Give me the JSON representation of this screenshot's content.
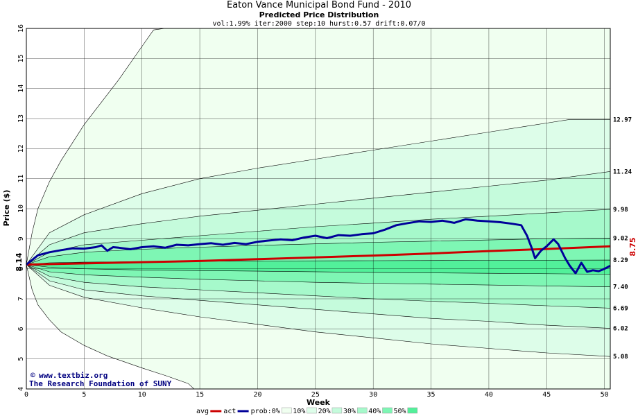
{
  "chart_data": {
    "type": "area",
    "title": "Eaton Vance Municipal Bond Fund - 2010",
    "subtitle": "Predicted Price Distribution",
    "params": "vol:1.99% iter:2000 step:10 hurst:0.57 drift:0.07/0",
    "xlabel": "Week",
    "ylabel": "Price ($)",
    "xlim": [
      0,
      50.5
    ],
    "ylim": [
      4,
      16
    ],
    "x_ticks": [
      "0",
      "5",
      "10",
      "15",
      "20",
      "25",
      "30",
      "35",
      "40",
      "45",
      "50"
    ],
    "y_ticks": [
      "4",
      "5",
      "6",
      "7",
      "8",
      "9",
      "10",
      "11",
      "12",
      "13",
      "14",
      "15",
      "16"
    ],
    "grid": true,
    "start_price": "8.14",
    "end_price": "8.75",
    "band_labels": [
      "12.97",
      "11.24",
      "9.98",
      "9.02",
      "8.29",
      "7.40",
      "6.69",
      "6.02",
      "5.08"
    ],
    "bands": [
      {
        "name": "0%",
        "color": "#f0fff0",
        "upper": [
          [
            0,
            8.14
          ],
          [
            0.5,
            9.2
          ],
          [
            1,
            10.0
          ],
          [
            2,
            10.9
          ],
          [
            3,
            11.6
          ],
          [
            5,
            12.8
          ],
          [
            8,
            14.3
          ],
          [
            10,
            15.4
          ],
          [
            11,
            15.95
          ],
          [
            12,
            16.0
          ],
          [
            50.5,
            16.0
          ]
        ],
        "lower": [
          [
            0,
            8.14
          ],
          [
            0.5,
            7.3
          ],
          [
            1,
            6.8
          ],
          [
            2,
            6.3
          ],
          [
            3,
            5.9
          ],
          [
            5,
            5.45
          ],
          [
            7,
            5.1
          ],
          [
            10,
            4.7
          ],
          [
            12,
            4.45
          ],
          [
            14,
            4.18
          ],
          [
            14.5,
            4.0
          ],
          [
            50.5,
            4.0
          ]
        ]
      },
      {
        "name": "10%",
        "color": "#ddfde9",
        "upper": [
          [
            0,
            8.14
          ],
          [
            2,
            9.2
          ],
          [
            5,
            9.8
          ],
          [
            10,
            10.5
          ],
          [
            15,
            11.0
          ],
          [
            20,
            11.35
          ],
          [
            25,
            11.65
          ],
          [
            30,
            11.95
          ],
          [
            35,
            12.25
          ],
          [
            40,
            12.55
          ],
          [
            45,
            12.85
          ],
          [
            47,
            12.97
          ],
          [
            50.5,
            12.97
          ]
        ],
        "lower": [
          [
            0,
            8.14
          ],
          [
            2,
            7.45
          ],
          [
            5,
            7.05
          ],
          [
            10,
            6.7
          ],
          [
            15,
            6.4
          ],
          [
            20,
            6.15
          ],
          [
            25,
            5.9
          ],
          [
            30,
            5.7
          ],
          [
            35,
            5.5
          ],
          [
            40,
            5.35
          ],
          [
            45,
            5.2
          ],
          [
            50.5,
            5.08
          ]
        ]
      },
      {
        "name": "20%",
        "color": "#c5fbdc",
        "upper": [
          [
            0,
            8.14
          ],
          [
            2,
            8.8
          ],
          [
            5,
            9.2
          ],
          [
            10,
            9.5
          ],
          [
            15,
            9.75
          ],
          [
            20,
            9.95
          ],
          [
            25,
            10.15
          ],
          [
            30,
            10.35
          ],
          [
            35,
            10.55
          ],
          [
            40,
            10.75
          ],
          [
            45,
            10.95
          ],
          [
            50.5,
            11.24
          ]
        ],
        "lower": [
          [
            0,
            8.14
          ],
          [
            2,
            7.6
          ],
          [
            5,
            7.3
          ],
          [
            10,
            7.1
          ],
          [
            15,
            6.95
          ],
          [
            20,
            6.8
          ],
          [
            25,
            6.65
          ],
          [
            30,
            6.5
          ],
          [
            35,
            6.35
          ],
          [
            40,
            6.25
          ],
          [
            45,
            6.12
          ],
          [
            50.5,
            6.02
          ]
        ]
      },
      {
        "name": "30%",
        "color": "#a6f9cb",
        "upper": [
          [
            0,
            8.14
          ],
          [
            2,
            8.55
          ],
          [
            5,
            8.8
          ],
          [
            10,
            8.95
          ],
          [
            15,
            9.1
          ],
          [
            20,
            9.25
          ],
          [
            25,
            9.4
          ],
          [
            30,
            9.52
          ],
          [
            35,
            9.65
          ],
          [
            40,
            9.75
          ],
          [
            45,
            9.86
          ],
          [
            50.5,
            9.98
          ]
        ],
        "lower": [
          [
            0,
            8.14
          ],
          [
            2,
            7.75
          ],
          [
            5,
            7.55
          ],
          [
            10,
            7.4
          ],
          [
            15,
            7.3
          ],
          [
            20,
            7.2
          ],
          [
            25,
            7.1
          ],
          [
            30,
            7.0
          ],
          [
            35,
            6.92
          ],
          [
            40,
            6.85
          ],
          [
            45,
            6.77
          ],
          [
            50.5,
            6.69
          ]
        ]
      },
      {
        "name": "40%",
        "color": "#7ef6b4",
        "upper": [
          [
            0,
            8.14
          ],
          [
            2,
            8.4
          ],
          [
            5,
            8.55
          ],
          [
            10,
            8.65
          ],
          [
            15,
            8.72
          ],
          [
            20,
            8.78
          ],
          [
            25,
            8.83
          ],
          [
            30,
            8.88
          ],
          [
            35,
            8.92
          ],
          [
            40,
            8.96
          ],
          [
            45,
            9.0
          ],
          [
            50.5,
            9.02
          ]
        ],
        "lower": [
          [
            0,
            8.14
          ],
          [
            2,
            7.9
          ],
          [
            5,
            7.8
          ],
          [
            10,
            7.72
          ],
          [
            15,
            7.65
          ],
          [
            20,
            7.6
          ],
          [
            25,
            7.55
          ],
          [
            30,
            7.52
          ],
          [
            35,
            7.49
          ],
          [
            40,
            7.46
          ],
          [
            45,
            7.43
          ],
          [
            50.5,
            7.4
          ]
        ]
      },
      {
        "name": "50%",
        "color": "#52f09a",
        "upper": [
          [
            0,
            8.14
          ],
          [
            2,
            8.2
          ],
          [
            5,
            8.22
          ],
          [
            10,
            8.24
          ],
          [
            20,
            8.26
          ],
          [
            30,
            8.27
          ],
          [
            40,
            8.28
          ],
          [
            50.5,
            8.29
          ]
        ],
        "lower": [
          [
            0,
            8.14
          ],
          [
            2,
            8.05
          ],
          [
            5,
            8.0
          ],
          [
            10,
            7.96
          ],
          [
            20,
            7.92
          ],
          [
            30,
            7.88
          ],
          [
            40,
            7.85
          ],
          [
            50.5,
            7.82
          ]
        ]
      }
    ],
    "series": [
      {
        "name": "avg",
        "color": "#cc0000",
        "values": [
          [
            0,
            8.14
          ],
          [
            5,
            8.18
          ],
          [
            10,
            8.22
          ],
          [
            15,
            8.26
          ],
          [
            20,
            8.32
          ],
          [
            25,
            8.38
          ],
          [
            30,
            8.44
          ],
          [
            35,
            8.51
          ],
          [
            40,
            8.59
          ],
          [
            45,
            8.66
          ],
          [
            50.5,
            8.75
          ]
        ]
      },
      {
        "name": "act",
        "color": "#000099",
        "values": [
          [
            0,
            8.14
          ],
          [
            1,
            8.45
          ],
          [
            2,
            8.55
          ],
          [
            3,
            8.62
          ],
          [
            4,
            8.68
          ],
          [
            5,
            8.67
          ],
          [
            6,
            8.72
          ],
          [
            6.5,
            8.78
          ],
          [
            7,
            8.6
          ],
          [
            7.5,
            8.72
          ],
          [
            8,
            8.7
          ],
          [
            9,
            8.65
          ],
          [
            10,
            8.72
          ],
          [
            11,
            8.75
          ],
          [
            12,
            8.7
          ],
          [
            13,
            8.8
          ],
          [
            14,
            8.78
          ],
          [
            15,
            8.82
          ],
          [
            16,
            8.85
          ],
          [
            17,
            8.8
          ],
          [
            18,
            8.86
          ],
          [
            19,
            8.82
          ],
          [
            20,
            8.9
          ],
          [
            21,
            8.94
          ],
          [
            22,
            8.98
          ],
          [
            23,
            8.95
          ],
          [
            24,
            9.04
          ],
          [
            25,
            9.1
          ],
          [
            26,
            9.02
          ],
          [
            27,
            9.12
          ],
          [
            28,
            9.1
          ],
          [
            29,
            9.15
          ],
          [
            30,
            9.18
          ],
          [
            31,
            9.3
          ],
          [
            32,
            9.45
          ],
          [
            33,
            9.52
          ],
          [
            34,
            9.58
          ],
          [
            35,
            9.56
          ],
          [
            36,
            9.6
          ],
          [
            37,
            9.53
          ],
          [
            38,
            9.65
          ],
          [
            39,
            9.6
          ],
          [
            40,
            9.58
          ],
          [
            41,
            9.55
          ],
          [
            42,
            9.5
          ],
          [
            42.8,
            9.45
          ],
          [
            43.3,
            9.1
          ],
          [
            43.7,
            8.7
          ],
          [
            44,
            8.35
          ],
          [
            44.5,
            8.6
          ],
          [
            45,
            8.75
          ],
          [
            45.6,
            8.98
          ],
          [
            46,
            8.82
          ],
          [
            46.6,
            8.35
          ],
          [
            47,
            8.1
          ],
          [
            47.5,
            7.85
          ],
          [
            48,
            8.2
          ],
          [
            48.5,
            7.9
          ],
          [
            49,
            7.95
          ],
          [
            49.5,
            7.92
          ],
          [
            50,
            8.0
          ],
          [
            50.5,
            8.1
          ]
        ]
      }
    ],
    "legend": {
      "position": "bottom",
      "avg_label": "avg",
      "act_label": "act",
      "prob_label": "prob:0%",
      "items": [
        "10%",
        "20%",
        "30%",
        "40%",
        "50%"
      ]
    }
  },
  "credit": {
    "site": "www.textbiz.org",
    "org": "The Research Foundation of SUNY"
  }
}
